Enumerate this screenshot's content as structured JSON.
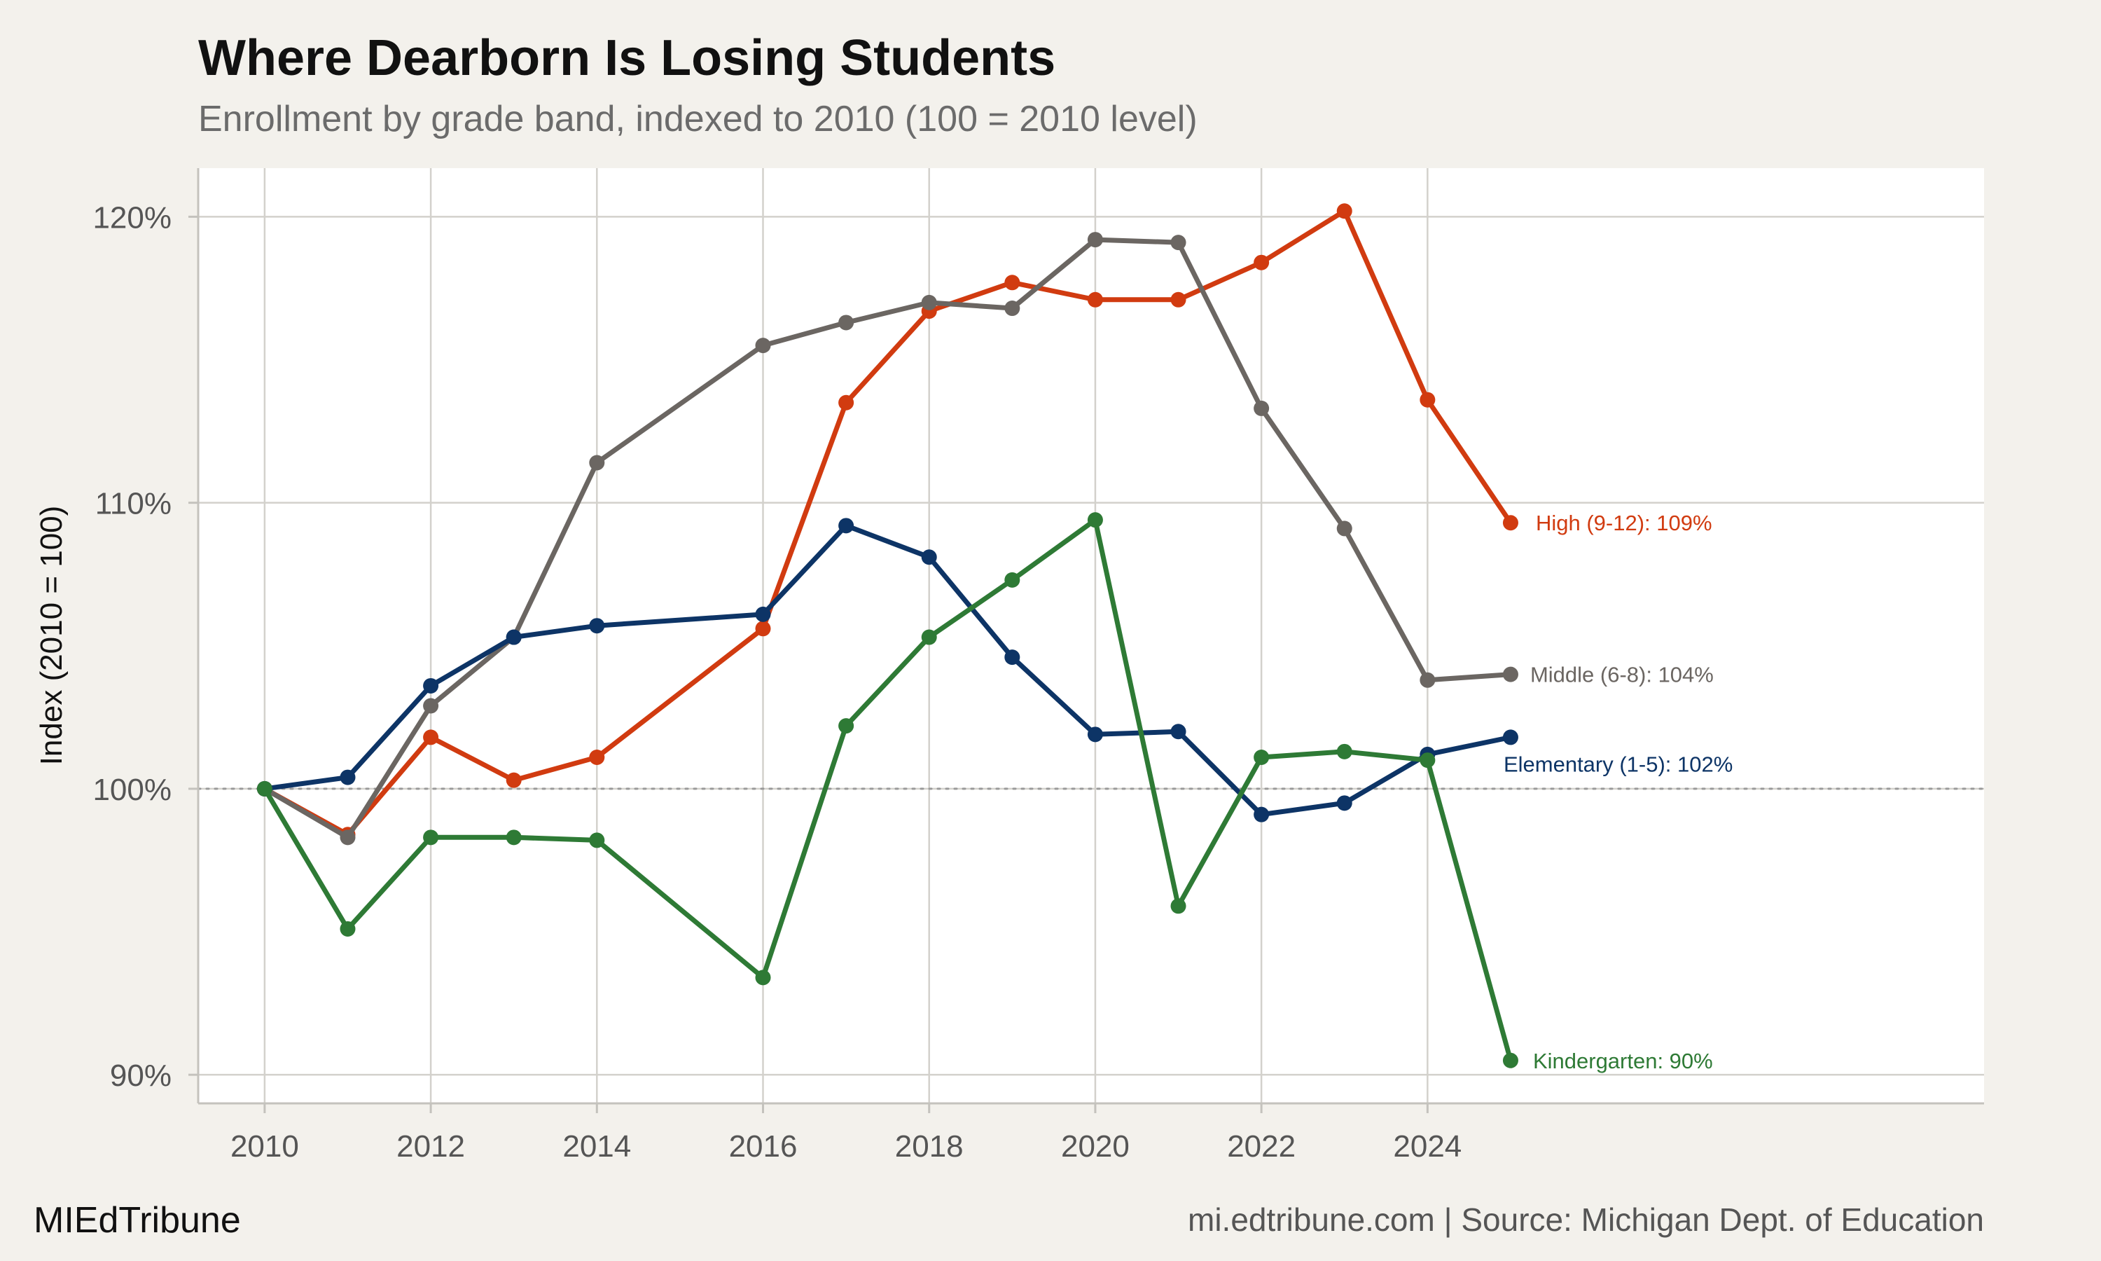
{
  "header": {
    "title": "Where Dearborn Is Losing Students",
    "subtitle": "Enrollment by grade band, indexed to 2010 (100 = 2010 level)"
  },
  "footer": {
    "brand": "MIEdTribune",
    "credit": "mi.edtribune.com | Source: Michigan Dept. of Education"
  },
  "chart_data": {
    "type": "line",
    "title": "Where Dearborn Is Losing Students",
    "subtitle": "Enrollment by grade band, indexed to 2010 (100 = 2010 level)",
    "xlabel": "",
    "ylabel": "Index (2010 = 100)",
    "xlim": [
      2009.2,
      2030.7
    ],
    "ylim": [
      89,
      121.7
    ],
    "x_ticks": [
      2010,
      2012,
      2014,
      2016,
      2018,
      2020,
      2022,
      2024
    ],
    "x_tick_labels": [
      "2010",
      "2012",
      "2014",
      "2016",
      "2018",
      "2020",
      "2022",
      "2024"
    ],
    "y_ticks": [
      90,
      100,
      110,
      120
    ],
    "y_tick_labels": [
      "90%",
      "100%",
      "110%",
      "120%"
    ],
    "reference_line": {
      "y": 100,
      "style": "dotted",
      "color": "#999999"
    },
    "grid": true,
    "legend": "direct labels at line ends",
    "series": [
      {
        "name": "High (9-12)",
        "label": "High (9-12): 109%",
        "color": "#d13b10",
        "points": [
          [
            2010,
            100
          ],
          [
            2011,
            98.4
          ],
          [
            2012,
            101.8
          ],
          [
            2013,
            100.3
          ],
          [
            2014,
            101.1
          ],
          [
            2016,
            105.6
          ],
          [
            2017,
            113.5
          ],
          [
            2018,
            116.7
          ],
          [
            2019,
            117.7
          ],
          [
            2020,
            117.1
          ],
          [
            2021,
            117.1
          ],
          [
            2022,
            118.4
          ],
          [
            2023,
            120.2
          ],
          [
            2024,
            113.6
          ],
          [
            2025,
            109.3
          ]
        ]
      },
      {
        "name": "Middle (6-8)",
        "label": "Middle (6-8): 104%",
        "color": "#6b6662",
        "points": [
          [
            2010,
            100
          ],
          [
            2011,
            98.3
          ],
          [
            2012,
            102.9
          ],
          [
            2013,
            105.3
          ],
          [
            2014,
            111.4
          ],
          [
            2016,
            115.5
          ],
          [
            2017,
            116.3
          ],
          [
            2018,
            117.0
          ],
          [
            2019,
            116.8
          ],
          [
            2020,
            119.2
          ],
          [
            2021,
            119.1
          ],
          [
            2022,
            113.3
          ],
          [
            2023,
            109.1
          ],
          [
            2024,
            103.8
          ],
          [
            2025,
            104.0
          ]
        ]
      },
      {
        "name": "Elementary (1-5)",
        "label": "Elementary (1-5): 102%",
        "color": "#0d3466",
        "points": [
          [
            2010,
            100
          ],
          [
            2011,
            100.4
          ],
          [
            2012,
            103.6
          ],
          [
            2013,
            105.3
          ],
          [
            2014,
            105.7
          ],
          [
            2016,
            106.1
          ],
          [
            2017,
            109.2
          ],
          [
            2018,
            108.1
          ],
          [
            2019,
            104.6
          ],
          [
            2020,
            101.9
          ],
          [
            2021,
            102.0
          ],
          [
            2022,
            99.1
          ],
          [
            2023,
            99.5
          ],
          [
            2024,
            101.2
          ],
          [
            2025,
            101.8
          ]
        ]
      },
      {
        "name": "Kindergarten",
        "label": "Kindergarten: 90%",
        "color": "#2e7a35",
        "points": [
          [
            2010,
            100
          ],
          [
            2011,
            95.1
          ],
          [
            2012,
            98.3
          ],
          [
            2013,
            98.3
          ],
          [
            2014,
            98.2
          ],
          [
            2016,
            93.4
          ],
          [
            2017,
            102.2
          ],
          [
            2018,
            105.3
          ],
          [
            2019,
            107.3
          ],
          [
            2020,
            109.4
          ],
          [
            2021,
            95.9
          ],
          [
            2022,
            101.1
          ],
          [
            2023,
            101.3
          ],
          [
            2024,
            101.0
          ],
          [
            2025,
            90.5
          ]
        ]
      }
    ]
  }
}
